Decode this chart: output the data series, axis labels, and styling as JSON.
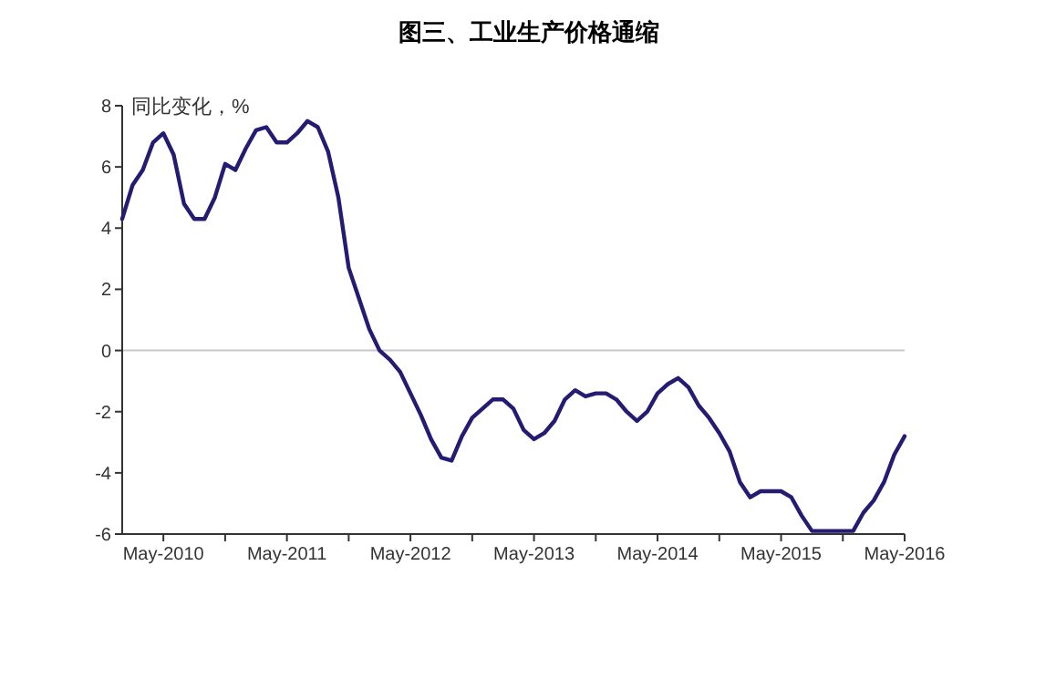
{
  "chart_data": {
    "type": "line",
    "title": "图三、工业生产价格通缩",
    "ylabel": "同比变化，%",
    "x": [
      "2010-01",
      "2010-02",
      "2010-03",
      "2010-04",
      "2010-05",
      "2010-06",
      "2010-07",
      "2010-08",
      "2010-09",
      "2010-10",
      "2010-11",
      "2010-12",
      "2011-01",
      "2011-02",
      "2011-03",
      "2011-04",
      "2011-05",
      "2011-06",
      "2011-07",
      "2011-08",
      "2011-09",
      "2011-10",
      "2011-11",
      "2011-12",
      "2012-01",
      "2012-02",
      "2012-03",
      "2012-04",
      "2012-05",
      "2012-06",
      "2012-07",
      "2012-08",
      "2012-09",
      "2012-10",
      "2012-11",
      "2012-12",
      "2013-01",
      "2013-02",
      "2013-03",
      "2013-04",
      "2013-05",
      "2013-06",
      "2013-07",
      "2013-08",
      "2013-09",
      "2013-10",
      "2013-11",
      "2013-12",
      "2014-01",
      "2014-02",
      "2014-03",
      "2014-04",
      "2014-05",
      "2014-06",
      "2014-07",
      "2014-08",
      "2014-09",
      "2014-10",
      "2014-11",
      "2014-12",
      "2015-01",
      "2015-02",
      "2015-03",
      "2015-04",
      "2015-05",
      "2015-06",
      "2015-07",
      "2015-08",
      "2015-09",
      "2015-10",
      "2015-11",
      "2015-12",
      "2016-01",
      "2016-02",
      "2016-03",
      "2016-04",
      "2016-05"
    ],
    "series": [
      {
        "color": "#241c72",
        "values": [
          4.3,
          5.4,
          5.9,
          6.8,
          7.1,
          6.4,
          4.8,
          4.3,
          4.3,
          5.0,
          6.1,
          5.9,
          6.6,
          7.2,
          7.3,
          6.8,
          6.8,
          7.1,
          7.5,
          7.3,
          6.5,
          5.0,
          2.7,
          1.7,
          0.7,
          0.0,
          -0.3,
          -0.7,
          -1.4,
          -2.1,
          -2.9,
          -3.5,
          -3.6,
          -2.8,
          -2.2,
          -1.9,
          -1.6,
          -1.6,
          -1.9,
          -2.6,
          -2.9,
          -2.7,
          -2.3,
          -1.6,
          -1.3,
          -1.5,
          -1.4,
          -1.4,
          -1.6,
          -2.0,
          -2.3,
          -2.0,
          -1.4,
          -1.1,
          -0.9,
          -1.2,
          -1.8,
          -2.2,
          -2.7,
          -3.3,
          -4.3,
          -4.8,
          -4.6,
          -4.6,
          -4.6,
          -4.8,
          -5.4,
          -5.9,
          -5.9,
          -5.9,
          -5.9,
          -5.9,
          -5.3,
          -4.9,
          -4.3,
          -3.4,
          -2.8
        ]
      }
    ],
    "xlim": [
      "2010-01",
      "2016-05"
    ],
    "xticks": [
      {
        "value": "2010-05",
        "label": "May-2010"
      },
      {
        "value": "2010-11",
        "label": null
      },
      {
        "value": "2011-05",
        "label": "May-2011"
      },
      {
        "value": "2011-11",
        "label": null
      },
      {
        "value": "2012-05",
        "label": "May-2012"
      },
      {
        "value": "2012-11",
        "label": null
      },
      {
        "value": "2013-05",
        "label": "May-2013"
      },
      {
        "value": "2013-11",
        "label": null
      },
      {
        "value": "2014-05",
        "label": "May-2014"
      },
      {
        "value": "2014-11",
        "label": null
      },
      {
        "value": "2015-05",
        "label": "May-2015"
      },
      {
        "value": "2015-11",
        "label": null
      },
      {
        "value": "2016-05",
        "label": "May-2016"
      }
    ],
    "ylim": [
      -6,
      8
    ],
    "yticks": [
      -6,
      -4,
      -2,
      0,
      2,
      4,
      6,
      8
    ],
    "ref_lines": [
      {
        "axis": "y",
        "value": 0,
        "color": "#c8c8c8"
      }
    ],
    "grid": false,
    "marker": "none",
    "line_style": "solid"
  }
}
